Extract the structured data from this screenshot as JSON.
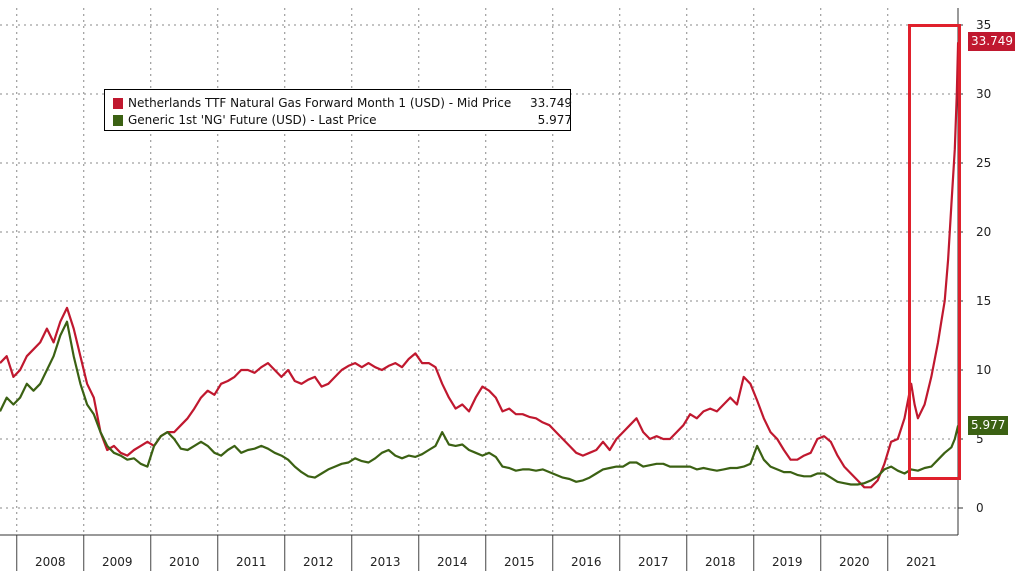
{
  "legend": [
    {
      "label": "Netherlands TTF Natural Gas Forward Month 1 (USD) - Mid Price",
      "value": "33.749",
      "color": "#c0182f"
    },
    {
      "label": "Generic 1st 'NG' Future (USD) - Last Price",
      "value": "5.977",
      "color": "#3b6113"
    }
  ],
  "end_tags": {
    "ttf": "33.749",
    "ng": "5.977"
  },
  "colors": {
    "ttf": "#c0182f",
    "ng": "#3b6113",
    "highlight": "#e0202c"
  },
  "chart_data": {
    "type": "line",
    "x_unit": "year",
    "xlim": [
      2007.5,
      2021.8
    ],
    "ylim": [
      -2,
      35
    ],
    "y_ticks": [
      0,
      5,
      10,
      15,
      20,
      25,
      30,
      35
    ],
    "x_tick_labels": [
      "2008",
      "2009",
      "2010",
      "2011",
      "2012",
      "2013",
      "2014",
      "2015",
      "2016",
      "2017",
      "2018",
      "2019",
      "2020",
      "2021"
    ],
    "grid": true,
    "y_axis_position": "right",
    "legend_position": "top-left",
    "series": [
      {
        "name": "Netherlands TTF Natural Gas Forward Month 1 (USD) - Mid Price",
        "points": [
          [
            2007.5,
            10.5
          ],
          [
            2007.6,
            11
          ],
          [
            2007.7,
            9.5
          ],
          [
            2007.8,
            10
          ],
          [
            2007.9,
            11
          ],
          [
            2008.0,
            11.5
          ],
          [
            2008.1,
            12
          ],
          [
            2008.2,
            13
          ],
          [
            2008.3,
            12
          ],
          [
            2008.4,
            13.5
          ],
          [
            2008.5,
            14.5
          ],
          [
            2008.6,
            13
          ],
          [
            2008.7,
            11
          ],
          [
            2008.8,
            9
          ],
          [
            2008.9,
            8
          ],
          [
            2009.0,
            5.5
          ],
          [
            2009.1,
            4.2
          ],
          [
            2009.2,
            4.5
          ],
          [
            2009.3,
            4
          ],
          [
            2009.4,
            3.8
          ],
          [
            2009.5,
            4.2
          ],
          [
            2009.6,
            4.5
          ],
          [
            2009.7,
            4.8
          ],
          [
            2009.8,
            4.5
          ],
          [
            2009.9,
            5.2
          ],
          [
            2010.0,
            5.5
          ],
          [
            2010.1,
            5.5
          ],
          [
            2010.2,
            6
          ],
          [
            2010.3,
            6.5
          ],
          [
            2010.4,
            7.2
          ],
          [
            2010.5,
            8
          ],
          [
            2010.6,
            8.5
          ],
          [
            2010.7,
            8.2
          ],
          [
            2010.8,
            9
          ],
          [
            2010.9,
            9.2
          ],
          [
            2011.0,
            9.5
          ],
          [
            2011.1,
            10
          ],
          [
            2011.2,
            10
          ],
          [
            2011.3,
            9.8
          ],
          [
            2011.4,
            10.2
          ],
          [
            2011.5,
            10.5
          ],
          [
            2011.6,
            10
          ],
          [
            2011.7,
            9.5
          ],
          [
            2011.8,
            10
          ],
          [
            2011.9,
            9.2
          ],
          [
            2012.0,
            9
          ],
          [
            2012.1,
            9.3
          ],
          [
            2012.2,
            9.5
          ],
          [
            2012.3,
            8.8
          ],
          [
            2012.4,
            9
          ],
          [
            2012.5,
            9.5
          ],
          [
            2012.6,
            10
          ],
          [
            2012.7,
            10.3
          ],
          [
            2012.8,
            10.5
          ],
          [
            2012.9,
            10.2
          ],
          [
            2013.0,
            10.5
          ],
          [
            2013.1,
            10.2
          ],
          [
            2013.2,
            10
          ],
          [
            2013.3,
            10.3
          ],
          [
            2013.4,
            10.5
          ],
          [
            2013.5,
            10.2
          ],
          [
            2013.6,
            10.8
          ],
          [
            2013.7,
            11.2
          ],
          [
            2013.8,
            10.5
          ],
          [
            2013.9,
            10.5
          ],
          [
            2014.0,
            10.2
          ],
          [
            2014.1,
            9
          ],
          [
            2014.2,
            8
          ],
          [
            2014.3,
            7.2
          ],
          [
            2014.4,
            7.5
          ],
          [
            2014.5,
            7
          ],
          [
            2014.6,
            8
          ],
          [
            2014.7,
            8.8
          ],
          [
            2014.8,
            8.5
          ],
          [
            2014.9,
            8
          ],
          [
            2015.0,
            7
          ],
          [
            2015.1,
            7.2
          ],
          [
            2015.2,
            6.8
          ],
          [
            2015.3,
            6.8
          ],
          [
            2015.4,
            6.6
          ],
          [
            2015.5,
            6.5
          ],
          [
            2015.6,
            6.2
          ],
          [
            2015.7,
            6
          ],
          [
            2015.8,
            5.5
          ],
          [
            2015.9,
            5
          ],
          [
            2016.0,
            4.5
          ],
          [
            2016.1,
            4
          ],
          [
            2016.2,
            3.8
          ],
          [
            2016.3,
            4
          ],
          [
            2016.4,
            4.2
          ],
          [
            2016.5,
            4.8
          ],
          [
            2016.6,
            4.2
          ],
          [
            2016.7,
            5
          ],
          [
            2016.8,
            5.5
          ],
          [
            2016.9,
            6
          ],
          [
            2017.0,
            6.5
          ],
          [
            2017.1,
            5.5
          ],
          [
            2017.2,
            5
          ],
          [
            2017.3,
            5.2
          ],
          [
            2017.4,
            5
          ],
          [
            2017.5,
            5
          ],
          [
            2017.6,
            5.5
          ],
          [
            2017.7,
            6
          ],
          [
            2017.8,
            6.8
          ],
          [
            2017.9,
            6.5
          ],
          [
            2018.0,
            7
          ],
          [
            2018.1,
            7.2
          ],
          [
            2018.2,
            7
          ],
          [
            2018.3,
            7.5
          ],
          [
            2018.4,
            8
          ],
          [
            2018.5,
            7.5
          ],
          [
            2018.6,
            9.5
          ],
          [
            2018.7,
            9
          ],
          [
            2018.8,
            7.8
          ],
          [
            2018.9,
            6.5
          ],
          [
            2019.0,
            5.5
          ],
          [
            2019.1,
            5
          ],
          [
            2019.2,
            4.2
          ],
          [
            2019.3,
            3.5
          ],
          [
            2019.4,
            3.5
          ],
          [
            2019.5,
            3.8
          ],
          [
            2019.6,
            4
          ],
          [
            2019.7,
            5
          ],
          [
            2019.8,
            5.2
          ],
          [
            2019.9,
            4.8
          ],
          [
            2020.0,
            3.8
          ],
          [
            2020.1,
            3
          ],
          [
            2020.2,
            2.5
          ],
          [
            2020.3,
            2
          ],
          [
            2020.4,
            1.5
          ],
          [
            2020.5,
            1.5
          ],
          [
            2020.6,
            2
          ],
          [
            2020.7,
            3.2
          ],
          [
            2020.8,
            4.8
          ],
          [
            2020.9,
            5
          ],
          [
            2021.0,
            6.5
          ],
          [
            2021.1,
            9
          ],
          [
            2021.15,
            7.5
          ],
          [
            2021.2,
            6.5
          ],
          [
            2021.3,
            7.5
          ],
          [
            2021.4,
            9.5
          ],
          [
            2021.5,
            12
          ],
          [
            2021.55,
            13.5
          ],
          [
            2021.6,
            15
          ],
          [
            2021.65,
            18
          ],
          [
            2021.7,
            22
          ],
          [
            2021.75,
            26
          ],
          [
            2021.78,
            30
          ],
          [
            2021.8,
            33.749
          ]
        ]
      },
      {
        "name": "Generic 1st 'NG' Future (USD) - Last Price",
        "points": [
          [
            2007.5,
            7
          ],
          [
            2007.6,
            8
          ],
          [
            2007.7,
            7.5
          ],
          [
            2007.8,
            8
          ],
          [
            2007.9,
            9
          ],
          [
            2008.0,
            8.5
          ],
          [
            2008.1,
            9
          ],
          [
            2008.2,
            10
          ],
          [
            2008.3,
            11
          ],
          [
            2008.4,
            12.5
          ],
          [
            2008.5,
            13.5
          ],
          [
            2008.6,
            11
          ],
          [
            2008.7,
            9
          ],
          [
            2008.8,
            7.5
          ],
          [
            2008.9,
            6.8
          ],
          [
            2009.0,
            5.5
          ],
          [
            2009.1,
            4.5
          ],
          [
            2009.2,
            4
          ],
          [
            2009.3,
            3.8
          ],
          [
            2009.4,
            3.5
          ],
          [
            2009.5,
            3.6
          ],
          [
            2009.6,
            3.2
          ],
          [
            2009.7,
            3
          ],
          [
            2009.8,
            4.5
          ],
          [
            2009.9,
            5.2
          ],
          [
            2010.0,
            5.5
          ],
          [
            2010.1,
            5
          ],
          [
            2010.2,
            4.3
          ],
          [
            2010.3,
            4.2
          ],
          [
            2010.4,
            4.5
          ],
          [
            2010.5,
            4.8
          ],
          [
            2010.6,
            4.5
          ],
          [
            2010.7,
            4
          ],
          [
            2010.8,
            3.8
          ],
          [
            2010.9,
            4.2
          ],
          [
            2011.0,
            4.5
          ],
          [
            2011.1,
            4
          ],
          [
            2011.2,
            4.2
          ],
          [
            2011.3,
            4.3
          ],
          [
            2011.4,
            4.5
          ],
          [
            2011.5,
            4.3
          ],
          [
            2011.6,
            4
          ],
          [
            2011.7,
            3.8
          ],
          [
            2011.8,
            3.5
          ],
          [
            2011.9,
            3
          ],
          [
            2012.0,
            2.6
          ],
          [
            2012.1,
            2.3
          ],
          [
            2012.2,
            2.2
          ],
          [
            2012.3,
            2.5
          ],
          [
            2012.4,
            2.8
          ],
          [
            2012.5,
            3
          ],
          [
            2012.6,
            3.2
          ],
          [
            2012.7,
            3.3
          ],
          [
            2012.8,
            3.6
          ],
          [
            2012.9,
            3.4
          ],
          [
            2013.0,
            3.3
          ],
          [
            2013.1,
            3.6
          ],
          [
            2013.2,
            4
          ],
          [
            2013.3,
            4.2
          ],
          [
            2013.4,
            3.8
          ],
          [
            2013.5,
            3.6
          ],
          [
            2013.6,
            3.8
          ],
          [
            2013.7,
            3.7
          ],
          [
            2013.8,
            3.9
          ],
          [
            2013.9,
            4.2
          ],
          [
            2014.0,
            4.5
          ],
          [
            2014.1,
            5.5
          ],
          [
            2014.2,
            4.6
          ],
          [
            2014.3,
            4.5
          ],
          [
            2014.4,
            4.6
          ],
          [
            2014.5,
            4.2
          ],
          [
            2014.6,
            4
          ],
          [
            2014.7,
            3.8
          ],
          [
            2014.8,
            4
          ],
          [
            2014.9,
            3.7
          ],
          [
            2015.0,
            3
          ],
          [
            2015.1,
            2.9
          ],
          [
            2015.2,
            2.7
          ],
          [
            2015.3,
            2.8
          ],
          [
            2015.4,
            2.8
          ],
          [
            2015.5,
            2.7
          ],
          [
            2015.6,
            2.8
          ],
          [
            2015.7,
            2.6
          ],
          [
            2015.8,
            2.4
          ],
          [
            2015.9,
            2.2
          ],
          [
            2016.0,
            2.1
          ],
          [
            2016.1,
            1.9
          ],
          [
            2016.2,
            2
          ],
          [
            2016.3,
            2.2
          ],
          [
            2016.4,
            2.5
          ],
          [
            2016.5,
            2.8
          ],
          [
            2016.6,
            2.9
          ],
          [
            2016.7,
            3
          ],
          [
            2016.8,
            3
          ],
          [
            2016.9,
            3.3
          ],
          [
            2017.0,
            3.3
          ],
          [
            2017.1,
            3
          ],
          [
            2017.2,
            3.1
          ],
          [
            2017.3,
            3.2
          ],
          [
            2017.4,
            3.2
          ],
          [
            2017.5,
            3
          ],
          [
            2017.6,
            3
          ],
          [
            2017.7,
            3
          ],
          [
            2017.8,
            3
          ],
          [
            2017.9,
            2.8
          ],
          [
            2018.0,
            2.9
          ],
          [
            2018.1,
            2.8
          ],
          [
            2018.2,
            2.7
          ],
          [
            2018.3,
            2.8
          ],
          [
            2018.4,
            2.9
          ],
          [
            2018.5,
            2.9
          ],
          [
            2018.6,
            3
          ],
          [
            2018.7,
            3.2
          ],
          [
            2018.8,
            4.5
          ],
          [
            2018.9,
            3.5
          ],
          [
            2019.0,
            3
          ],
          [
            2019.1,
            2.8
          ],
          [
            2019.2,
            2.6
          ],
          [
            2019.3,
            2.6
          ],
          [
            2019.4,
            2.4
          ],
          [
            2019.5,
            2.3
          ],
          [
            2019.6,
            2.3
          ],
          [
            2019.7,
            2.5
          ],
          [
            2019.8,
            2.5
          ],
          [
            2019.9,
            2.2
          ],
          [
            2020.0,
            1.9
          ],
          [
            2020.1,
            1.8
          ],
          [
            2020.2,
            1.7
          ],
          [
            2020.3,
            1.7
          ],
          [
            2020.4,
            1.8
          ],
          [
            2020.5,
            2
          ],
          [
            2020.6,
            2.3
          ],
          [
            2020.7,
            2.8
          ],
          [
            2020.8,
            3
          ],
          [
            2020.9,
            2.7
          ],
          [
            2021.0,
            2.5
          ],
          [
            2021.1,
            2.8
          ],
          [
            2021.2,
            2.7
          ],
          [
            2021.3,
            2.9
          ],
          [
            2021.4,
            3
          ],
          [
            2021.5,
            3.5
          ],
          [
            2021.6,
            4
          ],
          [
            2021.7,
            4.4
          ],
          [
            2021.75,
            5
          ],
          [
            2021.8,
            5.977
          ]
        ]
      }
    ]
  }
}
